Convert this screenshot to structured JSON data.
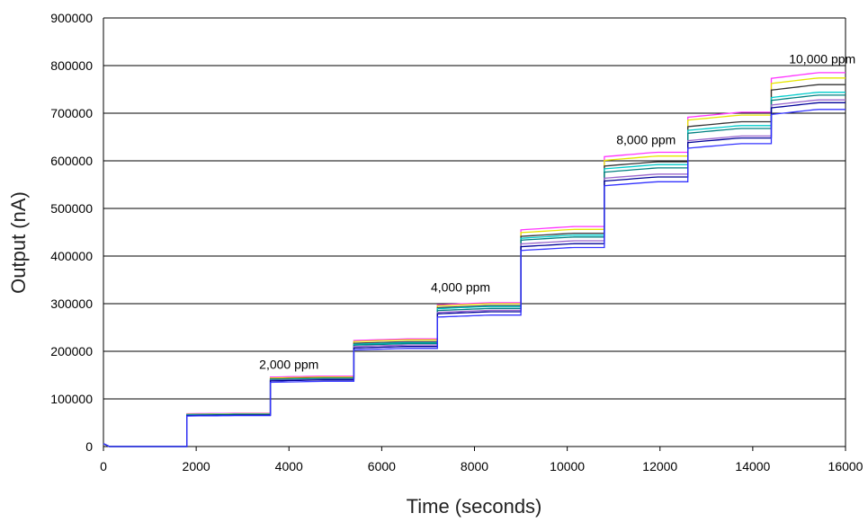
{
  "chart_data": {
    "type": "line",
    "title": "",
    "xlabel": "Time (seconds)",
    "ylabel": "Output (nA)",
    "xlim": [
      0,
      16000
    ],
    "ylim": [
      0,
      900000
    ],
    "x_ticks": [
      0,
      2000,
      4000,
      6000,
      8000,
      10000,
      12000,
      14000,
      16000
    ],
    "y_ticks": [
      0,
      100000,
      200000,
      300000,
      400000,
      500000,
      600000,
      700000,
      800000,
      900000
    ],
    "grid": "horizontal",
    "legend": "none",
    "step_times": [
      0,
      1800,
      3600,
      5400,
      7200,
      9000,
      10800,
      12600,
      14400,
      16000
    ],
    "annotations": [
      {
        "text": "2,000 ppm",
        "x": 4000,
        "y": 148000
      },
      {
        "text": "4,000 ppm",
        "x": 7700,
        "y": 310000
      },
      {
        "text": "8,000 ppm",
        "x": 11700,
        "y": 620000
      },
      {
        "text": "10,000 ppm",
        "x": 15500,
        "y": 790000
      }
    ],
    "series": [
      {
        "color": "#ff33ff",
        "levels": [
          0,
          70000,
          148000,
          226000,
          302000,
          462000,
          618000,
          702000,
          785000
        ]
      },
      {
        "color": "#e6e600",
        "levels": [
          0,
          69000,
          146000,
          224000,
          300000,
          456000,
          610000,
          696000,
          774000
        ]
      },
      {
        "color": "#333333",
        "levels": [
          0,
          68000,
          144000,
          220000,
          296000,
          448000,
          598000,
          682000,
          760000
        ]
      },
      {
        "color": "#00cccc",
        "levels": [
          0,
          68000,
          143000,
          218000,
          294000,
          444000,
          592000,
          674000,
          744000
        ]
      },
      {
        "color": "#008080",
        "levels": [
          0,
          67000,
          142000,
          216000,
          290000,
          440000,
          585000,
          668000,
          738000
        ]
      },
      {
        "color": "#9966cc",
        "levels": [
          0,
          66000,
          141000,
          213000,
          286000,
          432000,
          572000,
          652000,
          728000
        ]
      },
      {
        "color": "#000099",
        "levels": [
          0,
          66000,
          140000,
          210000,
          283000,
          426000,
          566000,
          648000,
          722000
        ]
      },
      {
        "color": "#3333ff",
        "levels": [
          0,
          65000,
          137000,
          206000,
          276000,
          418000,
          556000,
          636000,
          708000
        ]
      }
    ]
  }
}
